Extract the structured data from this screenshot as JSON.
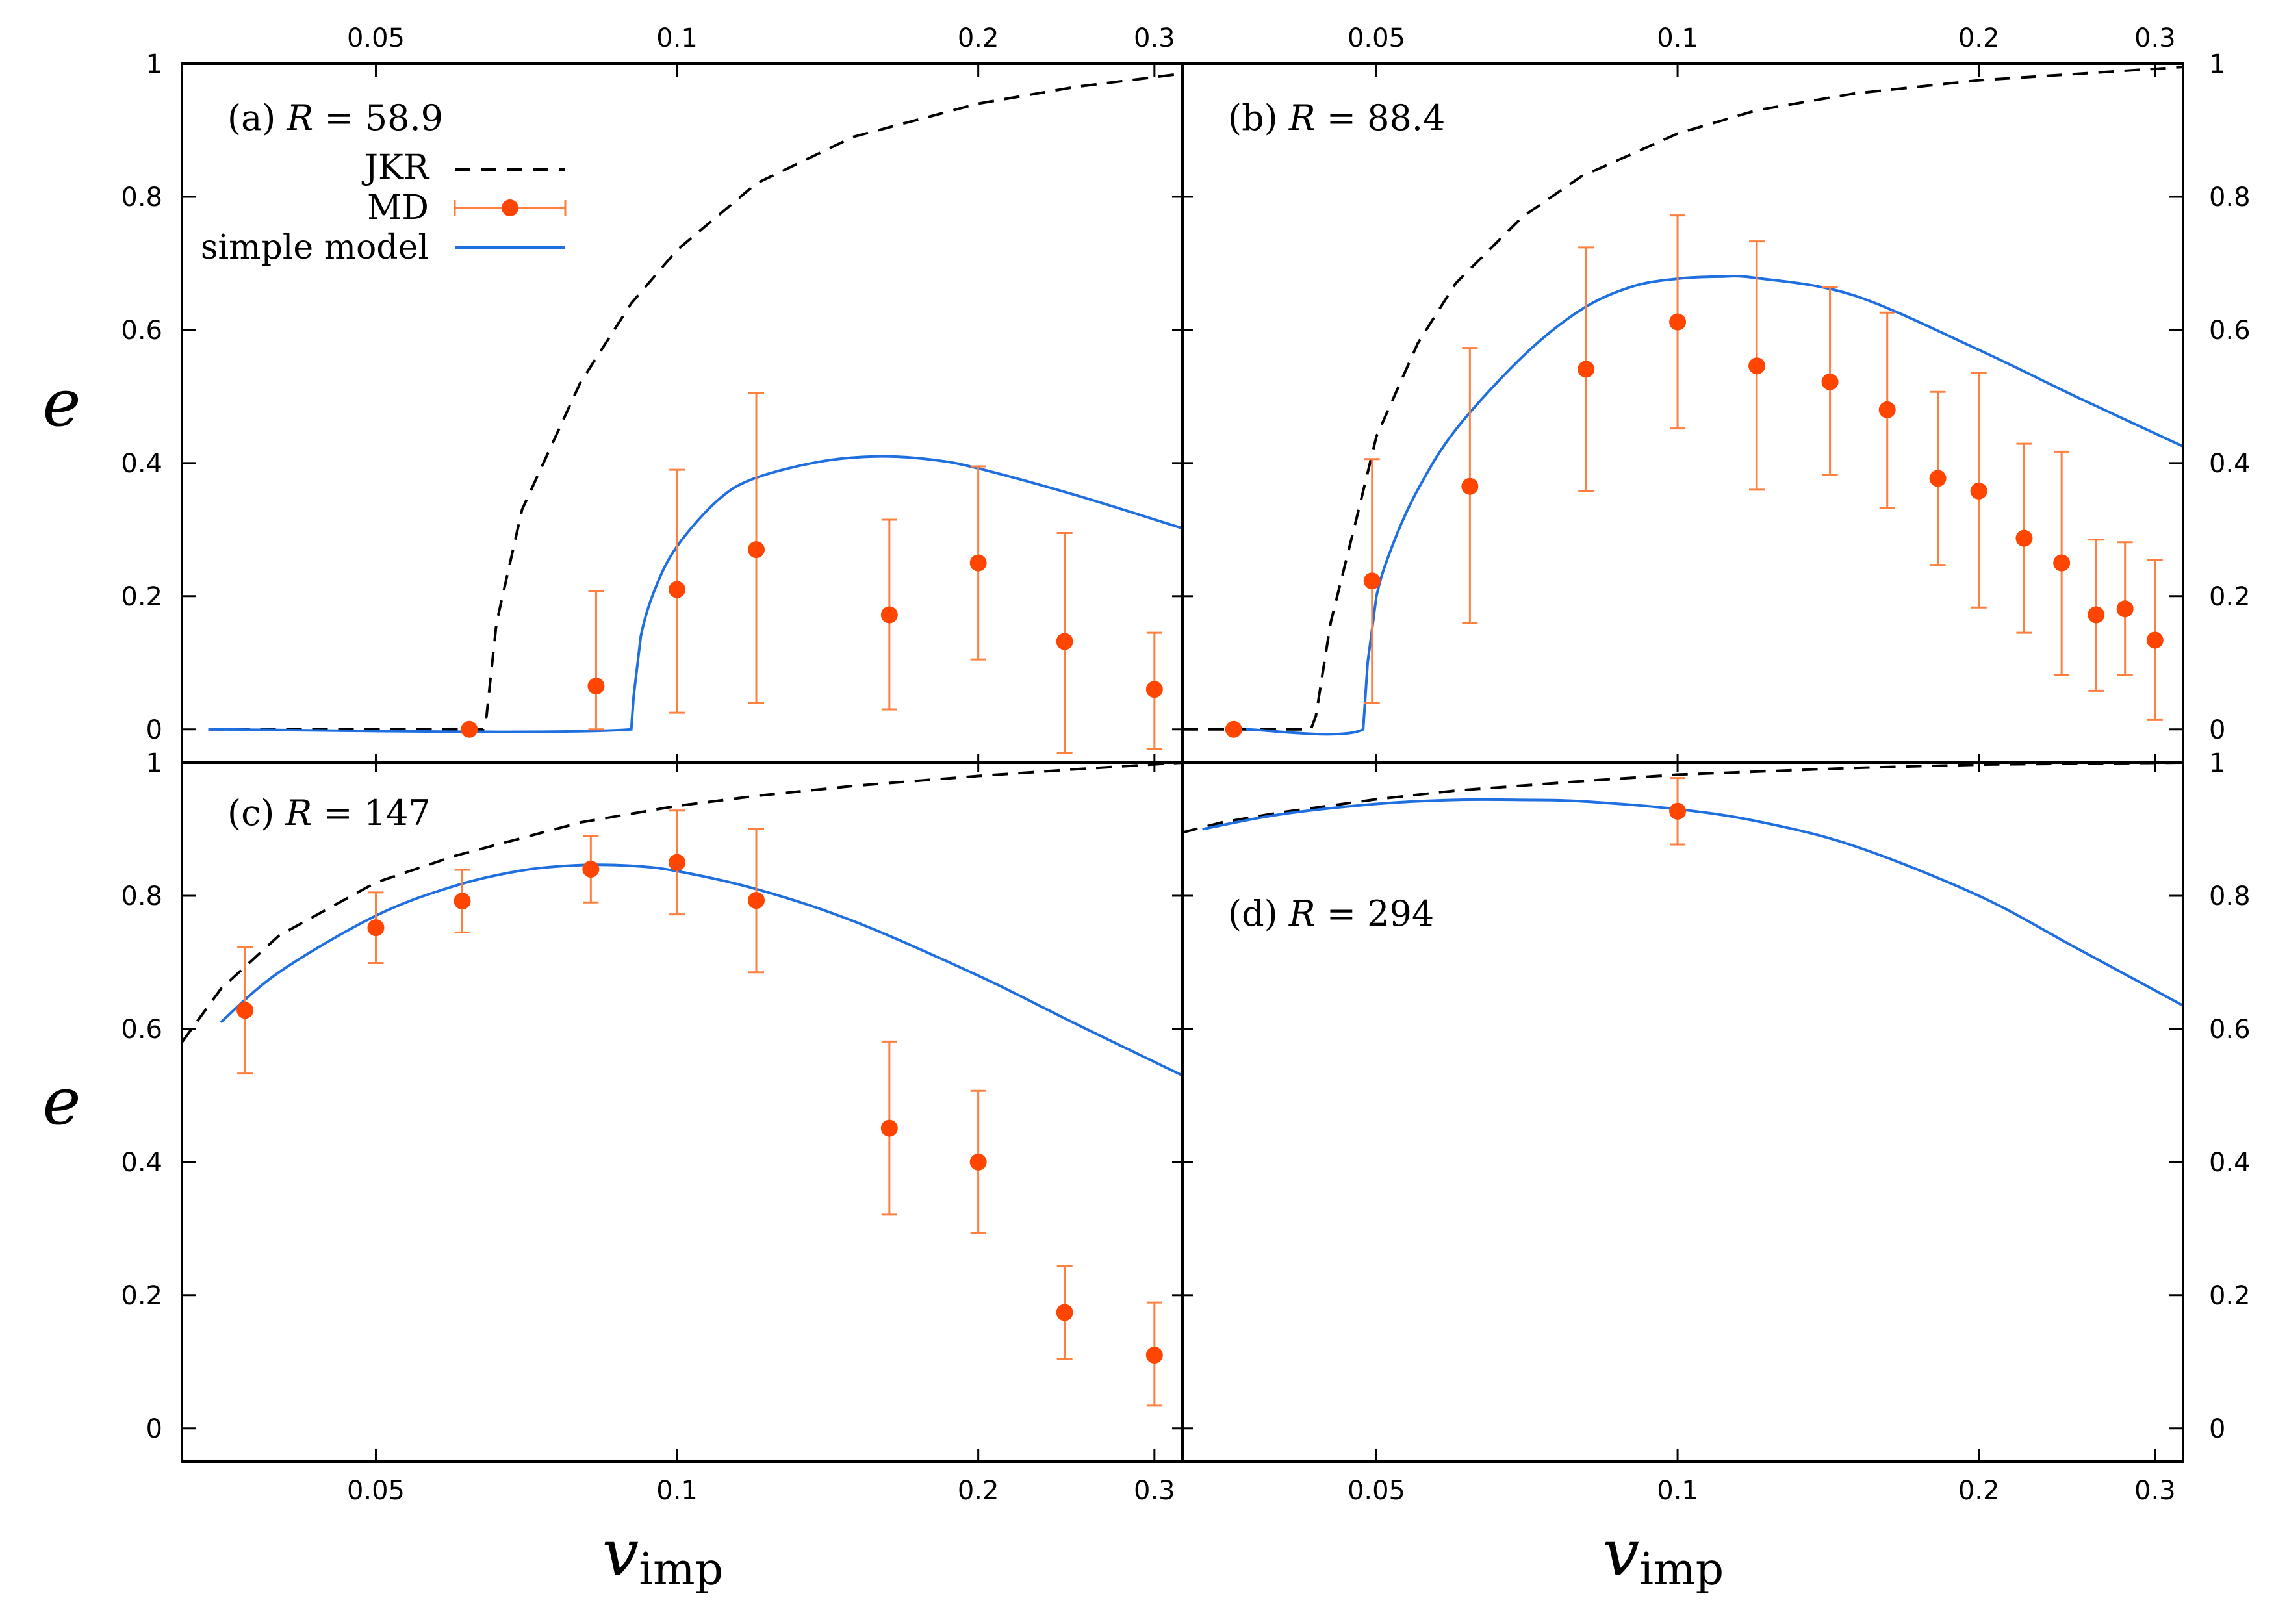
{
  "colors": {
    "jkr": "#000000",
    "md": "#ff4500",
    "md_err": "#ff7f3f",
    "model": "#1f6fe0",
    "frame": "#000000"
  },
  "legend": {
    "jkr": "JKR",
    "md": "MD",
    "model": "simple model"
  },
  "axes": {
    "x_main": "v",
    "x_sub": "imp",
    "y_label": "e",
    "x_tick_labels": [
      "0.05",
      "0.1",
      "0.2",
      "0.3"
    ],
    "y_tick_labels": [
      "0",
      "0.2",
      "0.4",
      "0.6",
      "0.8",
      "1"
    ]
  },
  "chart_data": [
    {
      "type": "scatter",
      "panel": "a",
      "label_prefix": "(a)",
      "label_var": "R",
      "label_eq": " = ",
      "label_value": "58.9",
      "title": "(a) R = 58.9",
      "xlabel": "v_imp",
      "ylabel": "e",
      "xscale": "log",
      "xlim": [
        0.032,
        0.32
      ],
      "ylim": [
        -0.05,
        1.0
      ],
      "jkr": {
        "x": [
          0.034,
          0.064,
          0.0645,
          0.066,
          0.07,
          0.08,
          0.09,
          0.1,
          0.12,
          0.15,
          0.2,
          0.25,
          0.32
        ],
        "y": [
          0,
          0,
          0.02,
          0.16,
          0.33,
          0.52,
          0.64,
          0.72,
          0.82,
          0.89,
          0.94,
          0.965,
          0.985
        ]
      },
      "md": {
        "x": [
          0.062,
          0.083,
          0.1,
          0.12,
          0.163,
          0.2,
          0.244,
          0.3
        ],
        "y": [
          0,
          0.065,
          0.21,
          0.27,
          0.172,
          0.25,
          0.132,
          0.06
        ],
        "err_lo": [
          0,
          0.065,
          0.185,
          0.23,
          0.142,
          0.145,
          0.167,
          0.09
        ],
        "err_hi": [
          0,
          0.143,
          0.18,
          0.235,
          0.143,
          0.145,
          0.163,
          0.085
        ]
      },
      "model": {
        "x": [
          0.034,
          0.09,
          0.0905,
          0.092,
          0.095,
          0.1,
          0.11,
          0.12,
          0.14,
          0.16,
          0.18,
          0.2,
          0.25,
          0.32
        ],
        "y": [
          0,
          0,
          0.05,
          0.14,
          0.21,
          0.275,
          0.345,
          0.378,
          0.403,
          0.41,
          0.405,
          0.392,
          0.352,
          0.302
        ]
      }
    },
    {
      "type": "scatter",
      "panel": "b",
      "label_prefix": "(b)",
      "label_var": "R",
      "label_eq": " = ",
      "label_value": "88.4",
      "title": "(b) R = 88.4",
      "xlabel": "v_imp",
      "ylabel": "e",
      "xscale": "log",
      "xlim": [
        0.032,
        0.32
      ],
      "ylim": [
        -0.05,
        1.0
      ],
      "jkr": {
        "x": [
          0.032,
          0.043,
          0.0435,
          0.045,
          0.048,
          0.05,
          0.055,
          0.06,
          0.07,
          0.08,
          0.1,
          0.12,
          0.15,
          0.2,
          0.32
        ],
        "y": [
          0,
          0,
          0.02,
          0.16,
          0.33,
          0.44,
          0.58,
          0.67,
          0.77,
          0.83,
          0.895,
          0.93,
          0.955,
          0.975,
          0.995
        ]
      },
      "md": {
        "x": [
          0.036,
          0.0495,
          0.062,
          0.081,
          0.1,
          0.12,
          0.142,
          0.162,
          0.182,
          0.2,
          0.222,
          0.242,
          0.262,
          0.28,
          0.3
        ],
        "y": [
          0,
          0.223,
          0.365,
          0.541,
          0.612,
          0.546,
          0.522,
          0.48,
          0.377,
          0.358,
          0.287,
          0.25,
          0.172,
          0.181,
          0.134
        ],
        "err_lo": [
          0,
          0.183,
          0.205,
          0.183,
          0.16,
          0.186,
          0.14,
          0.147,
          0.13,
          0.175,
          0.142,
          0.168,
          0.114,
          0.099,
          0.12
        ],
        "err_hi": [
          0,
          0.183,
          0.208,
          0.183,
          0.16,
          0.187,
          0.142,
          0.146,
          0.13,
          0.177,
          0.142,
          0.167,
          0.113,
          0.1,
          0.12
        ]
      },
      "model": {
        "x": [
          0.037,
          0.0485,
          0.049,
          0.05,
          0.052,
          0.055,
          0.06,
          0.07,
          0.08,
          0.09,
          0.1,
          0.11,
          0.12,
          0.15,
          0.2,
          0.25,
          0.32
        ],
        "y": [
          0,
          0,
          0.1,
          0.2,
          0.28,
          0.36,
          0.45,
          0.56,
          0.63,
          0.665,
          0.677,
          0.68,
          0.678,
          0.652,
          0.57,
          0.5,
          0.425
        ]
      }
    },
    {
      "type": "scatter",
      "panel": "c",
      "label_prefix": "(c)",
      "label_var": "R",
      "label_eq": " = ",
      "label_value": "147",
      "title": "(c) R = 147",
      "xlabel": "v_imp",
      "ylabel": "e",
      "xscale": "log",
      "xlim": [
        0.032,
        0.32
      ],
      "ylim": [
        -0.05,
        1.0
      ],
      "jkr": {
        "x": [
          0.032,
          0.035,
          0.04,
          0.05,
          0.06,
          0.08,
          0.1,
          0.12,
          0.15,
          0.2,
          0.25,
          0.32
        ],
        "y": [
          0.58,
          0.66,
          0.74,
          0.82,
          0.86,
          0.91,
          0.935,
          0.95,
          0.965,
          0.98,
          0.99,
          1.0
        ]
      },
      "md": {
        "x": [
          0.037,
          0.05,
          0.061,
          0.082,
          0.1,
          0.12,
          0.163,
          0.2,
          0.244,
          0.3
        ],
        "y": [
          0.628,
          0.752,
          0.792,
          0.84,
          0.85,
          0.793,
          0.451,
          0.4,
          0.174,
          0.11
        ],
        "err_lo": [
          0.095,
          0.053,
          0.047,
          0.05,
          0.078,
          0.108,
          0.13,
          0.107,
          0.07,
          0.076
        ],
        "err_hi": [
          0.095,
          0.053,
          0.047,
          0.05,
          0.078,
          0.108,
          0.13,
          0.107,
          0.07,
          0.079
        ]
      },
      "model": {
        "x": [
          0.035,
          0.04,
          0.05,
          0.06,
          0.07,
          0.08,
          0.09,
          0.1,
          0.12,
          0.15,
          0.2,
          0.25,
          0.32
        ],
        "y": [
          0.61,
          0.685,
          0.77,
          0.815,
          0.838,
          0.846,
          0.845,
          0.837,
          0.81,
          0.762,
          0.68,
          0.608,
          0.53
        ]
      }
    },
    {
      "type": "scatter",
      "panel": "d",
      "label_prefix": "(d)",
      "label_var": "R",
      "label_eq": " = ",
      "label_value": "294",
      "title": "(d) R = 294",
      "xlabel": "v_imp",
      "ylabel": "e",
      "xscale": "log",
      "xlim": [
        0.032,
        0.32
      ],
      "ylim": [
        -0.05,
        1.0
      ],
      "jkr": {
        "x": [
          0.032,
          0.035,
          0.04,
          0.05,
          0.06,
          0.08,
          0.1,
          0.15,
          0.2,
          0.32
        ],
        "y": [
          0.895,
          0.91,
          0.925,
          0.945,
          0.958,
          0.972,
          0.982,
          0.992,
          0.997,
          1.0
        ]
      },
      "md": {
        "x": [
          0.1
        ],
        "y": [
          0.927
        ],
        "err_lo": [
          0.05
        ],
        "err_hi": [
          0.05
        ]
      },
      "model": {
        "x": [
          0.0335,
          0.04,
          0.05,
          0.06,
          0.07,
          0.08,
          0.1,
          0.12,
          0.15,
          0.2,
          0.25,
          0.32
        ],
        "y": [
          0.9,
          0.922,
          0.938,
          0.944,
          0.944,
          0.942,
          0.93,
          0.912,
          0.875,
          0.8,
          0.722,
          0.635
        ]
      }
    }
  ]
}
